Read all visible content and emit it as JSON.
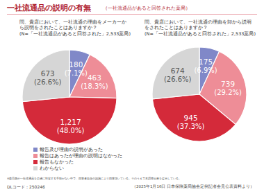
{
  "header": {
    "title": "一社流通品の説明の有無",
    "subtitle": "（一社流通品があると回答された薬局）"
  },
  "chart_data": [
    {
      "type": "pie",
      "title": "問、貴店において、一社流通の理由をメーカーから説明をされたことはありますか？",
      "subtitle": "(N=「一社流通品があると回答された」2,533薬局)",
      "categories": [
        "報告及び理由の説明があった",
        "報告はあったが理由の説明はなかった",
        "報告もなかった",
        "わからない"
      ],
      "values": [
        180,
        463,
        1217,
        673
      ],
      "value_labels": [
        "180",
        "463",
        "1,217",
        "673"
      ],
      "percentage_labels": [
        "(7.1%)",
        "(18.3%)",
        "(48.0%)",
        "(26.6%)"
      ],
      "colors": [
        "#8088c8",
        "#ee8d97",
        "#d42a3a",
        "#d6d6d6"
      ],
      "data_labels": true,
      "legend": "bottom"
    },
    {
      "type": "pie",
      "title": "問、貴店において、一社流通の理由を卸から説明をされたことはありますか？",
      "subtitle": "(N=「一社流通品があると回答された」2,533薬局)",
      "categories": [
        "報告及び理由の説明があった",
        "報告はあったが理由の説明はなかった",
        "報告もなかった",
        "わからない"
      ],
      "values": [
        175,
        739,
        945,
        674
      ],
      "value_labels": [
        "175",
        "739",
        "945",
        "674"
      ],
      "percentage_labels": [
        "(6.9%)",
        "(29.2%)",
        "(37.3%)",
        "(26.6%)"
      ],
      "colors": [
        "#8088c8",
        "#ee8d97",
        "#d42a3a",
        "#d6d6d6"
      ],
      "data_labels": true
    }
  ],
  "footer": {
    "note": "※薬局側が一社流通品を正確に特定する手段がない中で、回答者自身の認識により回答頂いている。そのうえで本調査結果を提示している。",
    "code": "DLコード：250246",
    "source": "（2025年1月16日 日本保険薬局協会定例記者会見公表資料より）"
  }
}
